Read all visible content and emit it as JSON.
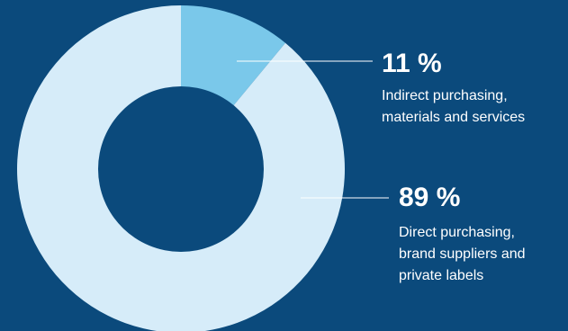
{
  "chart_data": {
    "type": "pie",
    "variant": "donut",
    "start_angle": "top (12 o'clock), clockwise",
    "segments": [
      {
        "value": 11,
        "value_label": "11 %",
        "description": [
          "Indirect purchasing,",
          "materials and services"
        ],
        "color": "#7ac8ea"
      },
      {
        "value": 89,
        "value_label": "89 %",
        "description": [
          "Direct purchasing,",
          "brand suppliers and",
          "private labels"
        ],
        "color": "#d6ecf9"
      }
    ],
    "background_color": "#0b4a7c",
    "leader_line_color": "#ffffff"
  }
}
